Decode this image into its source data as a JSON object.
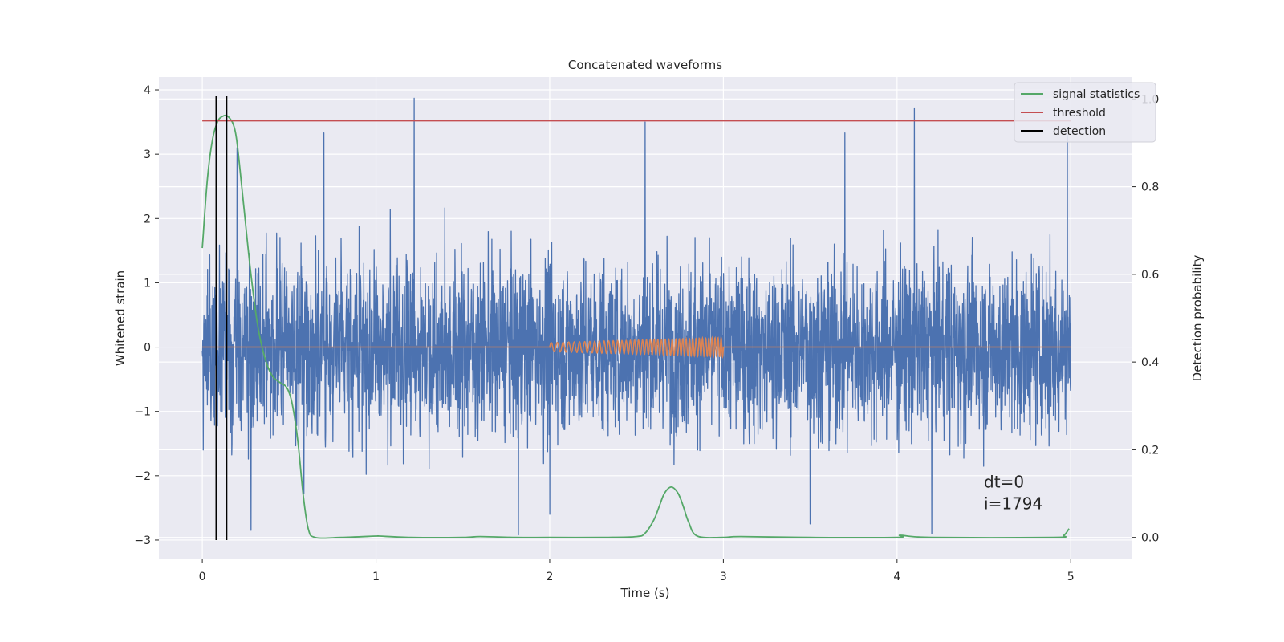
{
  "chart_data": {
    "type": "line",
    "title": "Concatenated waveforms",
    "xlabel": "Time (s)",
    "ylabel": "Whitened strain",
    "ylabel_right": "Detection probability",
    "xlim": [
      -0.25,
      5.35
    ],
    "ylim": [
      -3.3,
      4.2
    ],
    "ylim_right": [
      -0.05,
      1.05
    ],
    "xticks": [
      0,
      1,
      2,
      3,
      4,
      5
    ],
    "yticks": [
      -3,
      -2,
      -1,
      0,
      1,
      2,
      3,
      4
    ],
    "yticks_right": [
      0.0,
      0.2,
      0.4,
      0.6,
      0.8,
      1.0
    ],
    "xtick_labels": [
      "0",
      "1",
      "2",
      "3",
      "4",
      "5"
    ],
    "ytick_labels": [
      "−3",
      "−2",
      "−1",
      "0",
      "1",
      "2",
      "3",
      "4"
    ],
    "ytick_right_labels": [
      "0.0",
      "0.2",
      "0.4",
      "0.6",
      "0.8",
      "1.0"
    ],
    "grid": true,
    "legend_position": "top-right",
    "colors": {
      "strain": "#4c72b0",
      "template": "#dd8452",
      "signal": "#55a868",
      "threshold": "#c44e52",
      "detection": "#000000",
      "background": "#eaeaf2"
    },
    "series": [
      {
        "name": "signal statistics",
        "axis": "right",
        "x": [
          0,
          0.03,
          0.06,
          0.09,
          0.12,
          0.14,
          0.16,
          0.18,
          0.2,
          0.24,
          0.28,
          0.32,
          0.36,
          0.4,
          0.44,
          0.48,
          0.5,
          0.52,
          0.55,
          0.58,
          0.61,
          0.65,
          0.8,
          1.0,
          1.02,
          1.2,
          1.5,
          1.6,
          1.8,
          2.0,
          2.3,
          2.5,
          2.55,
          2.6,
          2.63,
          2.66,
          2.7,
          2.74,
          2.77,
          2.8,
          2.85,
          3.0,
          3.1,
          3.5,
          4.0,
          4.02,
          4.2,
          4.9,
          4.96,
          4.99
        ],
        "y": [
          0.66,
          0.82,
          0.91,
          0.95,
          0.961,
          0.962,
          0.955,
          0.94,
          0.9,
          0.75,
          0.6,
          0.48,
          0.41,
          0.37,
          0.355,
          0.345,
          0.33,
          0.3,
          0.22,
          0.1,
          0.02,
          0.0,
          0.0,
          0.003,
          0.003,
          0.0,
          0.0,
          0.002,
          0.0,
          0.0,
          0.0,
          0.002,
          0.01,
          0.04,
          0.07,
          0.1,
          0.115,
          0.1,
          0.07,
          0.035,
          0.003,
          0.0,
          0.002,
          0.0,
          0.0,
          0.005,
          0.0,
          0.0,
          0.005,
          0.02
        ]
      },
      {
        "name": "threshold",
        "axis": "right",
        "x": [
          0,
          5
        ],
        "y": [
          0.95,
          0.95
        ]
      },
      {
        "name": "detection",
        "axis": "left",
        "vlines_x": [
          0.08,
          0.14
        ],
        "ymin": -3.0,
        "ymax": 3.9
      },
      {
        "name": "",
        "axis": "left",
        "kind": "noise",
        "x_range": [
          0,
          5
        ],
        "amplitude_range": [
          -2.9,
          3.87
        ],
        "peaks": [
          {
            "x": 1.22,
            "y": 3.87
          },
          {
            "x": 4.1,
            "y": 3.72
          },
          {
            "x": 2.55,
            "y": 3.5
          },
          {
            "x": 3.7,
            "y": 3.33
          },
          {
            "x": 0.7,
            "y": 3.33
          },
          {
            "x": 4.98,
            "y": 3.3
          },
          {
            "x": 0.2,
            "y": 3.1
          },
          {
            "x": 1.82,
            "y": -2.92
          },
          {
            "x": 4.2,
            "y": -2.9
          },
          {
            "x": 0.28,
            "y": -2.85
          },
          {
            "x": 3.5,
            "y": -2.75
          },
          {
            "x": 2.0,
            "y": -2.6
          }
        ]
      },
      {
        "name": "",
        "axis": "left",
        "kind": "chirp",
        "x_range": [
          2.0,
          3.0
        ],
        "amplitude_start": 0.07,
        "amplitude_end": 0.15,
        "baseline": 0
      }
    ],
    "annotations": [
      {
        "text": "dt=0",
        "x": 4.5,
        "y": -2.18
      },
      {
        "text": "i=1794",
        "x": 4.5,
        "y": -2.52
      }
    ]
  }
}
